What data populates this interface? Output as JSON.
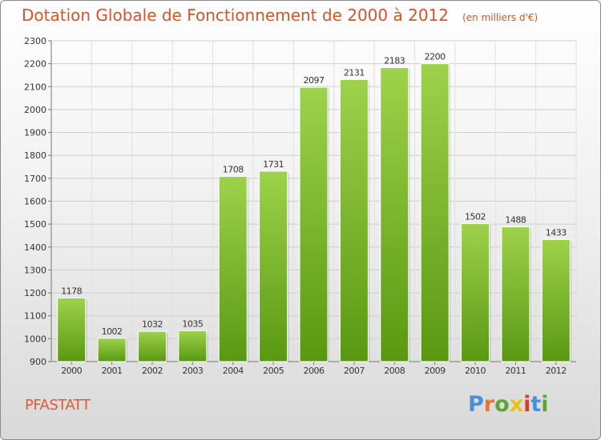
{
  "header": {
    "title": "Dotation Globale de Fonctionnement de 2000 à 2012",
    "unit_note": "(en milliers d'€)"
  },
  "footer": {
    "city": "PFASTATT",
    "logo_text": "Proxiti"
  },
  "colors": {
    "title": "#d9522c",
    "bar_top": "#9ed24b",
    "bar_bottom": "#5a9812",
    "logo": [
      "#4a8fd8",
      "#e8762c",
      "#5aa832",
      "#e8c21c",
      "#d9402c",
      "#4a8fd8",
      "#5aa832"
    ]
  },
  "chart_data": {
    "type": "bar",
    "categories": [
      "2000",
      "2001",
      "2002",
      "2003",
      "2004",
      "2005",
      "2006",
      "2007",
      "2008",
      "2009",
      "2010",
      "2011",
      "2012"
    ],
    "values": [
      1178,
      1002,
      1032,
      1035,
      1708,
      1731,
      2097,
      2131,
      2183,
      2200,
      1502,
      1488,
      1433
    ],
    "title": "Dotation Globale de Fonctionnement de 2000 à 2012",
    "xlabel": "",
    "ylabel": "",
    "ylim": [
      900,
      2300
    ],
    "yticks": [
      900,
      1000,
      1100,
      1200,
      1300,
      1400,
      1500,
      1600,
      1700,
      1800,
      1900,
      2000,
      2100,
      2200,
      2300
    ],
    "grid": true,
    "legend": "none"
  }
}
